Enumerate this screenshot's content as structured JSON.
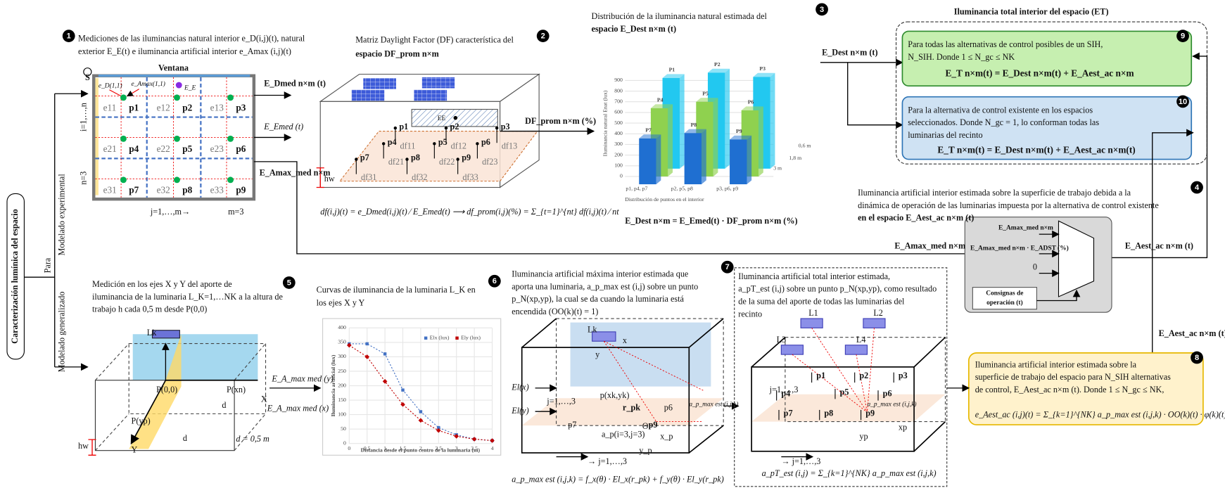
{
  "side_label": "Caracterización lumínica del espacio",
  "para": "Para",
  "branches": [
    "Modelado experimental",
    "Modelado generalizado"
  ],
  "p1": {
    "number": "1",
    "title": [
      "Mediciones de las iluminancias natural interior e_D(i,j)(t), natural",
      "exterior E_E(t) e iluminancia artificial interior e_Amax (i,j)(t)"
    ],
    "window": "Ventana",
    "compass": "S",
    "cells": [
      "e11",
      "e12",
      "e13",
      "e21",
      "e22",
      "e23",
      "e31",
      "e32",
      "e33"
    ],
    "points": [
      "p1",
      "p2",
      "p3",
      "p4",
      "p5",
      "p6",
      "p7",
      "p8",
      "p9"
    ],
    "markers": [
      "e_D(1,1)",
      "e_Amax(1,1)",
      "E_E"
    ],
    "rows": "i=1,…,n",
    "n": "n=3",
    "cols": "j=1,…,m→",
    "m": "m=3",
    "outputs": [
      "E_Dmed n×m (t)",
      "E_Emed (t)",
      "E_Amax_med n×m"
    ]
  },
  "p2": {
    "number": "2",
    "title": [
      "Matriz Daylight Factor (DF) característica del",
      "espacio DF_prom n×m"
    ],
    "df": [
      "df11",
      "df12",
      "df13",
      "df21",
      "df22",
      "df23",
      "df31",
      "df32",
      "df33"
    ],
    "ee": "EE",
    "hw": "hw",
    "formula": "df(i,j)(t) = e_Dmed(i,j)(t) ⁄ E_Emed(t)  ⟶  df_prom(i,j)(%) = Σ_{t=1}^{nt} df(i,j)(t) ⁄ nt",
    "output": "DF_prom n×m (%)"
  },
  "p3": {
    "number": "3",
    "formula": "E_Dest n×m = E_Emed(t) · DF_prom n×m (%)",
    "output": "E_Dest n×m (t)"
  },
  "et": {
    "title": "Iluminancia total interior del espacio (ET)",
    "box9": {
      "number": "9",
      "text": [
        "Para todas las alternativas de control posibles de un SIH,",
        "N_SIH. Donde 1 ≤ N_gc ≤ NK"
      ],
      "formula": "E_T n×m(t) = E_Dest n×m(t) + E_Aest_ac n×m"
    },
    "box10": {
      "number": "10",
      "text": [
        "Para la alternativa de control existente en los espacios",
        "seleccionados. Donde N_gc = 1, lo conforman todas las",
        "luminarias del recinto"
      ],
      "formula": "E_T n×m(t) = E_Dest n×m(t) + E_Aest_ac n×m(t)"
    }
  },
  "p4": {
    "number": "4",
    "text": [
      "Iluminancia artificial interior estimada sobre la superficie de trabajo debida a la",
      "dinámica de operación de las luminarias impuesta por la alternativa de control existente",
      "en el espacio E_Aest_ac n×m (t)"
    ],
    "inputs": [
      "E_Amax_med n×m",
      "E_Amax_med n×m · E_ADST (%)",
      "0"
    ],
    "setpoints": [
      "Consignas de",
      "operación (t)"
    ],
    "output": "E_Aest_ac n×m (t)",
    "input_line": "E_Amax_med n×m"
  },
  "p8": {
    "number": "8",
    "text": [
      "Iluminancia artificial interior estimada sobre la",
      "superficie de trabajo del espacio para N_SIH alternativas",
      "de control, E_Aest_ac n×m (t). Donde 1 ≤ N_gc ≤ NK,"
    ],
    "formula": "e_Aest_ac (i,j)(t) = Σ_{k=1}^{NK} a_p_max est (i,j,k) · OO(k)(t) · φ(k)(t)",
    "input": "E_Aest_ac n×m (t)"
  },
  "p5": {
    "number": "5",
    "text": [
      "Medición en los ejes X y Y del aporte de",
      "iluminancia de la luminaria L_K=1,…NK a la altura de",
      "trabajo h cada 0,5 m desde P(0,0)"
    ],
    "labels": [
      "Lk",
      "P(0,0)",
      "P(xn)",
      "P(yp)",
      "X",
      "Y",
      "d",
      "d",
      "hw"
    ],
    "spacing": "d = 0,5 m",
    "outputs": [
      "E_A_max med (y)",
      "E_A_max med (x)"
    ]
  },
  "p6": {
    "number": "6"
  },
  "p7": {
    "number": "7",
    "text": [
      "Iluminancia artificial máxima interior estimada que",
      "aporta una luminaria, a_p_max est (i,j) sobre un punto",
      "p_N(xp,yp), la cual se da cuando la luminaria está",
      "encendida (OO(k)(t) = 1)"
    ],
    "labels": [
      "Lk",
      "x",
      "y",
      "p(xk,yk)",
      "r_pk",
      "Θ",
      "p9",
      "p6",
      "p7",
      "a_p(i=3,j=3)",
      "x_p",
      "y_p",
      "→ j=1,…,3",
      "j=1,…,3"
    ],
    "inputs": [
      "El(x)",
      "El(y)"
    ],
    "formula": "a_p_max est (i,j,k) = f_x(θ) · El_x(r_pk) + f_y(θ) · El_y(r_pk)",
    "output": "a_p_max est (i,j,k)"
  },
  "p7b": {
    "text": [
      "Iluminancia artificial total interior estimada,",
      "a_pT_est (i,j) sobre un punto p_N(xp,yp), como resultado",
      "de la suma del aporte de todas las luminarias del",
      "recinto"
    ],
    "lamps": [
      "L1",
      "L2",
      "L3",
      "L4"
    ],
    "labels": [
      "→ j=1,…,3",
      "j=1,…,3",
      "xp",
      "yp"
    ],
    "formula": "a_pT_est (i,j) = Σ_{k=1}^{NK} a_p_max est (i,j,k)",
    "output": "a_p_max est (i,j,k)"
  },
  "chart_data": [
    {
      "type": "bar3d",
      "title": [
        "Distribución de la iluminancia natural estimada del",
        "espacio E_Dest n×m (t)"
      ],
      "ylabel": "Iluminancia natural Enat (lux)",
      "xlabel": "Distribución de puntos en el interior",
      "categories": [
        "p1, p4, p7",
        "p2, p5, p8",
        "p3, p6, p9"
      ],
      "series": [
        {
          "name": "0,6 m",
          "color": "#22c8f0",
          "labels": [
            "P1",
            "P2",
            "P3"
          ],
          "values": [
            850,
            900,
            860
          ]
        },
        {
          "name": "1,8 m",
          "color": "#8fd14f",
          "labels": [
            "P4",
            "P5",
            "P6"
          ],
          "values": [
            640,
            700,
            620
          ]
        },
        {
          "name": "3 m",
          "color": "#1f6fd1",
          "labels": [
            "P7",
            "P8",
            "P9"
          ],
          "values": [
            430,
            480,
            420
          ]
        }
      ],
      "ylim": [
        0,
        900
      ],
      "yticks": [
        0,
        100,
        200,
        300,
        400,
        500,
        600,
        700,
        800,
        900
      ],
      "grid": true
    },
    {
      "type": "line",
      "title": [
        "Curvas de iluminancia de la luminaria L_K en",
        "los ejes X y Y"
      ],
      "xlabel": "Distancia desde el punto centro de la luminaria (m)",
      "ylabel": "Iluminancia artificial (lux)",
      "x": [
        0,
        0.5,
        1,
        1.5,
        2,
        2.5,
        3,
        3.5,
        4
      ],
      "series": [
        {
          "name": "Elx (lux)",
          "color": "#4472c4",
          "marker": "square",
          "values": [
            345,
            345,
            310,
            185,
            110,
            55,
            30,
            15,
            10
          ]
        },
        {
          "name": "Ely (lux)",
          "color": "#c00000",
          "marker": "diamond",
          "values": [
            340,
            300,
            215,
            135,
            80,
            45,
            25,
            15,
            10
          ]
        }
      ],
      "xlim": [
        0,
        4
      ],
      "xticks": [
        0,
        {
          "value": 0.5,
          "label": "0,5"
        },
        1,
        {
          "value": 1.5,
          "label": "1,5"
        },
        2,
        {
          "value": 2.5,
          "label": "2,5"
        },
        3,
        {
          "value": 3.5,
          "label": "3,5"
        },
        4
      ],
      "ylim": [
        0,
        400
      ],
      "yticks": [
        0,
        50,
        100,
        150,
        200,
        250,
        300,
        350,
        400
      ],
      "grid": true
    }
  ]
}
